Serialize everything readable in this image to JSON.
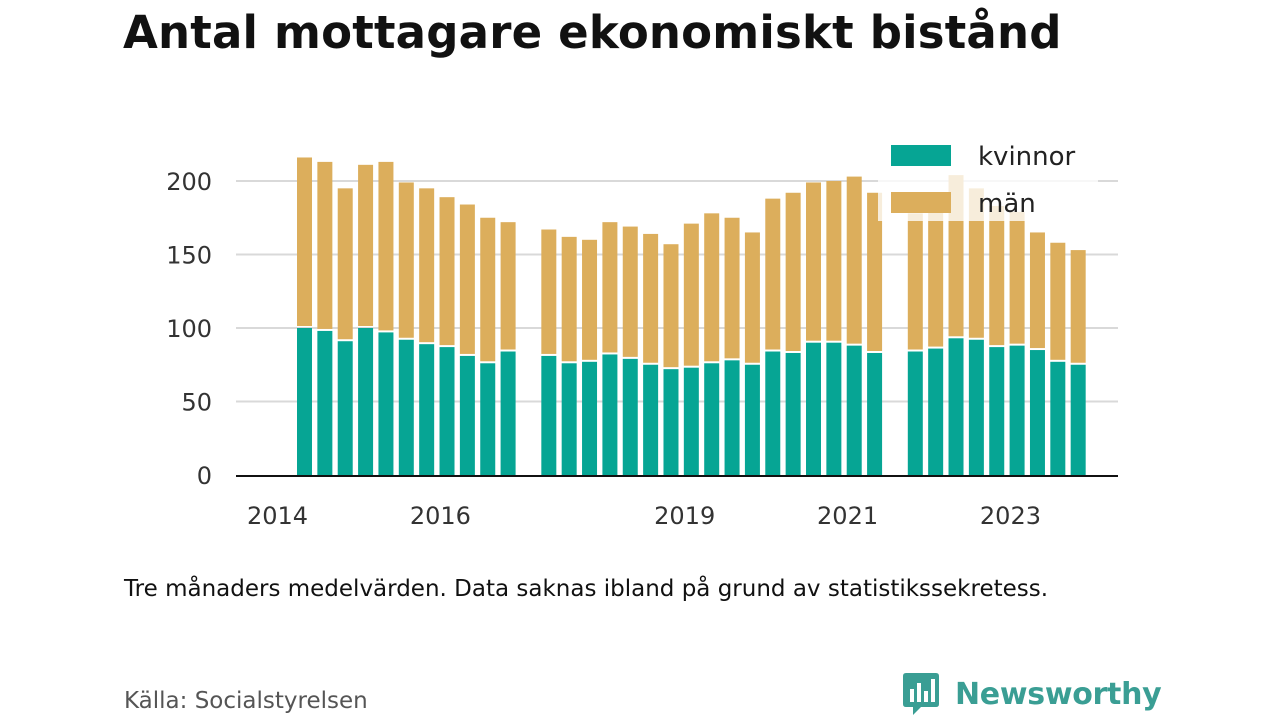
{
  "title": "Antal mottagare ekonomiskt bistånd",
  "note": "Tre månaders medelvärden. Data saknas ibland på grund av statistikssekretess.",
  "source": "Källa: Socialstyrelsen",
  "brand": {
    "name": "Newsworthy",
    "logo_icon": "newsworthy-chart-bubble-icon",
    "color": "#3a9e94"
  },
  "colors": {
    "kvinnor": "#06a594",
    "man": "#dcae5c"
  },
  "chart_data": {
    "type": "bar",
    "stacked": true,
    "x_ticks": [
      "2014",
      "2016",
      "2019",
      "2021",
      "2023"
    ],
    "ylim": [
      0,
      220
    ],
    "y_ticks": [
      0,
      50,
      100,
      150,
      200
    ],
    "grid": true,
    "legend_position": "top-right",
    "series": [
      {
        "name": "kvinnor",
        "values": [
          100,
          98,
          91,
          100,
          97,
          92,
          89,
          87,
          81,
          76,
          84,
          null,
          81,
          76,
          77,
          82,
          79,
          75,
          72,
          73,
          76,
          78,
          75,
          84,
          83,
          90,
          90,
          88,
          83,
          null,
          84,
          86,
          93,
          92,
          87,
          88,
          85,
          77,
          75
        ]
      },
      {
        "name": "män",
        "values": [
          116,
          115,
          104,
          111,
          116,
          107,
          106,
          102,
          103,
          99,
          88,
          null,
          86,
          86,
          83,
          90,
          90,
          89,
          85,
          98,
          102,
          97,
          90,
          104,
          109,
          109,
          110,
          115,
          109,
          null,
          94,
          94,
          111,
          103,
          96,
          91,
          80,
          81,
          78
        ]
      }
    ]
  }
}
